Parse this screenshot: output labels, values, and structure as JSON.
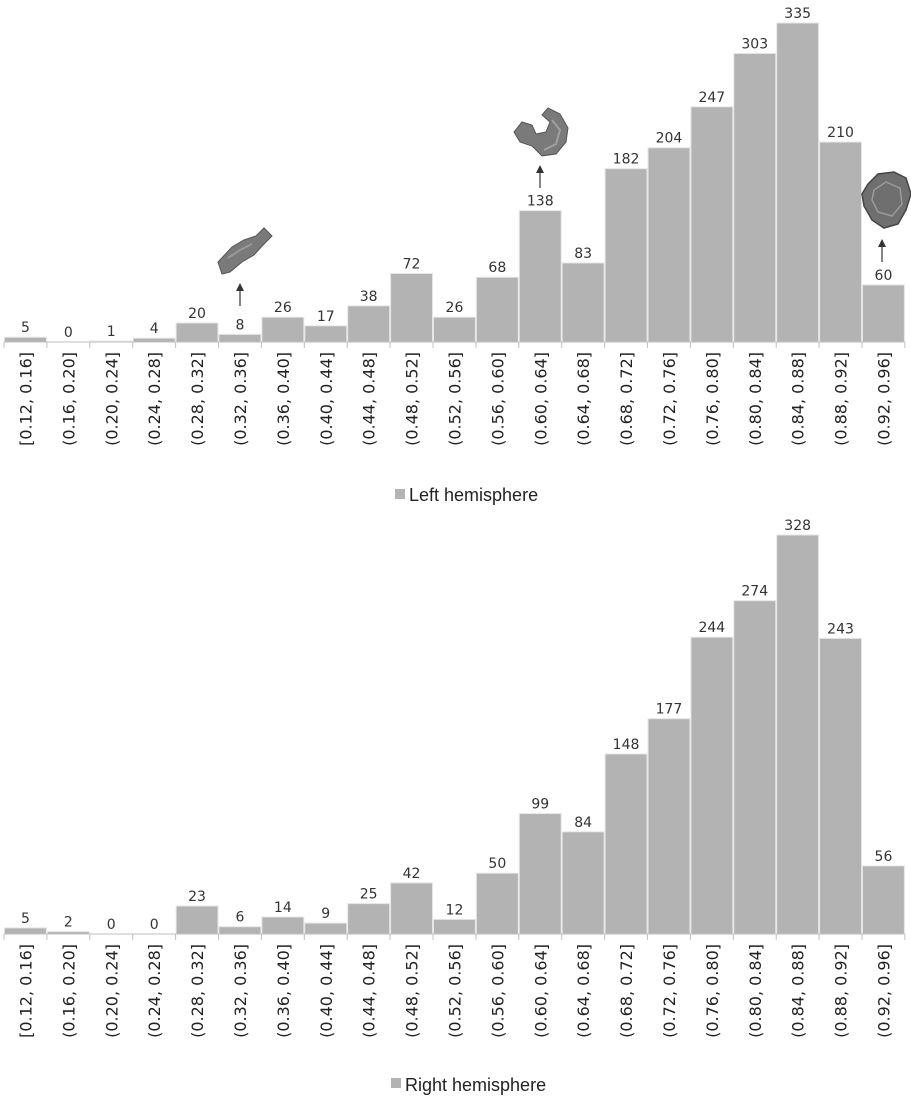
{
  "chart_data": [
    {
      "type": "bar",
      "categories": [
        "[0.12, 0.16]",
        "(0.16, 0.20]",
        "(0.20, 0.24]",
        "(0.24, 0.28]",
        "(0.28, 0.32]",
        "(0.32, 0.36]",
        "(0.36, 0.40]",
        "(0.40, 0.44]",
        "(0.44, 0.48]",
        "(0.48, 0.52]",
        "(0.52, 0.56]",
        "(0.56, 0.60]",
        "(0.60, 0.64]",
        "(0.64, 0.68]",
        "(0.68, 0.72]",
        "(0.72, 0.76]",
        "(0.76, 0.80]",
        "(0.80, 0.84]",
        "(0.84, 0.88]",
        "(0.88, 0.92]",
        "(0.92, 0.96]"
      ],
      "series": [
        {
          "name": "Left hemisphere",
          "values": [
            5,
            0,
            1,
            4,
            20,
            8,
            26,
            17,
            38,
            72,
            26,
            68,
            138,
            83,
            182,
            204,
            247,
            303,
            335,
            210,
            60
          ]
        }
      ],
      "legend_position": "bottom",
      "grid": false,
      "bar_color": "#b3b3b3",
      "annotation_icons": [
        "small-elongated-shape-icon",
        "curved-shape-icon",
        "round-lumpy-shape-icon"
      ]
    },
    {
      "type": "bar",
      "categories": [
        "[0.12, 0.16]",
        "(0.16, 0.20]",
        "(0.20, 0.24]",
        "(0.24, 0.28]",
        "(0.28, 0.32]",
        "(0.32, 0.36]",
        "(0.36, 0.40]",
        "(0.40, 0.44]",
        "(0.44, 0.48]",
        "(0.48, 0.52]",
        "(0.52, 0.56]",
        "(0.56, 0.60]",
        "(0.60, 0.64]",
        "(0.64, 0.68]",
        "(0.68, 0.72]",
        "(0.72, 0.76]",
        "(0.76, 0.80]",
        "(0.80, 0.84]",
        "(0.84, 0.88]",
        "(0.88, 0.92]",
        "(0.92, 0.96]"
      ],
      "series": [
        {
          "name": "Right hemisphere",
          "values": [
            5,
            2,
            0,
            0,
            23,
            6,
            14,
            9,
            25,
            42,
            12,
            50,
            99,
            84,
            148,
            177,
            244,
            274,
            328,
            243,
            56
          ]
        }
      ],
      "legend_position": "bottom",
      "grid": false,
      "bar_color": "#b3b3b3"
    }
  ]
}
